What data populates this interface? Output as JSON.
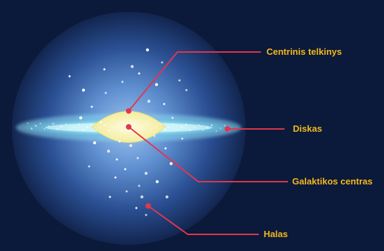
{
  "diagram": {
    "labels": {
      "central_bulge": "Centrinis telkinys",
      "disk": "Diskas",
      "galactic_center": "Galaktikos centras",
      "halo": "Halas"
    },
    "colors": {
      "background": "#0b1a3a",
      "halo_glow": "#5f8fd0",
      "disk": "#9fe6f2",
      "bulge": "#f3ec9c",
      "pointer": "#e0374f",
      "label_text": "#f5b81c",
      "stars": "#ffffff"
    }
  }
}
